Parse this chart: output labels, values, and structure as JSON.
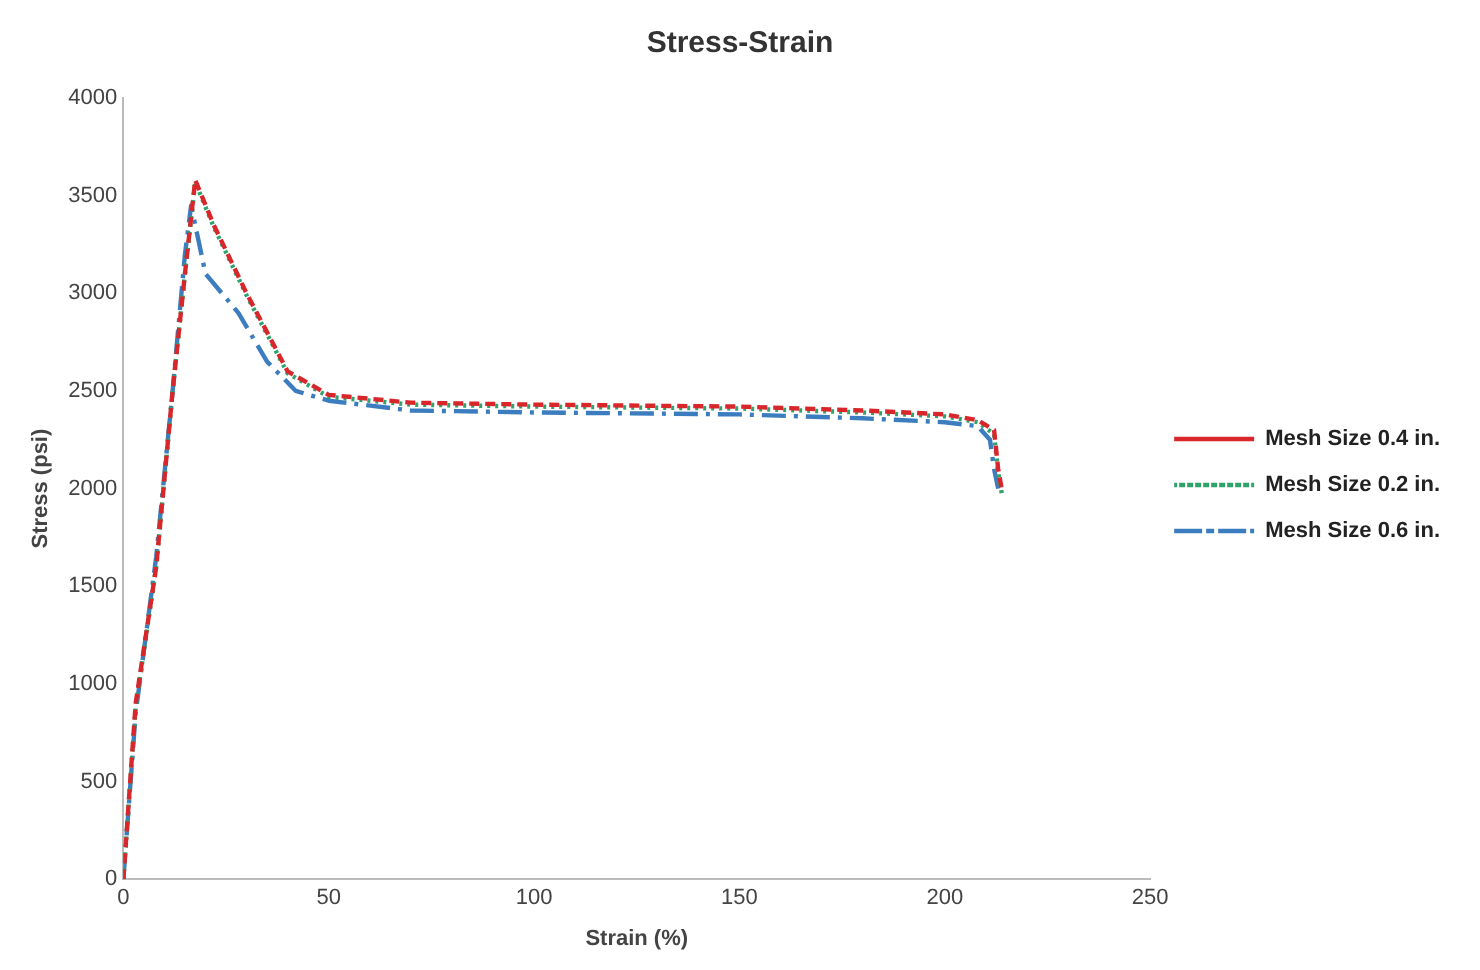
{
  "chart_data": {
    "type": "line",
    "title": "Stress-Strain",
    "xlabel": "Strain (%)",
    "ylabel": "Stress (psi)",
    "xlim": [
      0,
      250
    ],
    "xticks": [
      0,
      50,
      100,
      150,
      200,
      250
    ],
    "ylim": [
      0,
      4000
    ],
    "yticks": [
      0,
      500,
      1000,
      1500,
      2000,
      2500,
      3000,
      3500,
      4000
    ],
    "grid": false,
    "legend": "right",
    "marker": "none",
    "series": [
      {
        "name": "Mesh Size 0.4 in.",
        "color": "#d9262b",
        "line_style": "dashed",
        "x": [
          0,
          3,
          8,
          12,
          15,
          17.5,
          22,
          30,
          35,
          40,
          50,
          70,
          100,
          150,
          180,
          200,
          208,
          212,
          213,
          214
        ],
        "values": [
          0,
          900,
          1600,
          2500,
          3100,
          3580,
          3350,
          3000,
          2800,
          2600,
          2480,
          2440,
          2430,
          2420,
          2400,
          2380,
          2350,
          2300,
          2100,
          1980
        ]
      },
      {
        "name": "Mesh Size 0.2 in.",
        "color": "#2fa36b",
        "line_style": "dotted",
        "x": [
          0,
          3,
          8,
          12,
          15,
          17.5,
          22,
          30,
          35,
          40,
          50,
          70,
          100,
          150,
          180,
          200,
          208,
          212,
          213,
          214
        ],
        "values": [
          0,
          880,
          1600,
          2500,
          3100,
          3570,
          3340,
          2990,
          2790,
          2590,
          2470,
          2430,
          2420,
          2410,
          2390,
          2370,
          2340,
          2280,
          2080,
          1960
        ]
      },
      {
        "name": "Mesh Size 0.6 in.",
        "color": "#3b7dbf",
        "line_style": "dashdot",
        "x": [
          0,
          3,
          8,
          12,
          15,
          16.5,
          20,
          28,
          35,
          42,
          50,
          70,
          100,
          150,
          180,
          200,
          208,
          211,
          212,
          213
        ],
        "values": [
          0,
          850,
          1650,
          2500,
          3200,
          3450,
          3100,
          2900,
          2650,
          2500,
          2450,
          2400,
          2390,
          2380,
          2360,
          2340,
          2320,
          2250,
          2100,
          2000
        ]
      }
    ]
  }
}
